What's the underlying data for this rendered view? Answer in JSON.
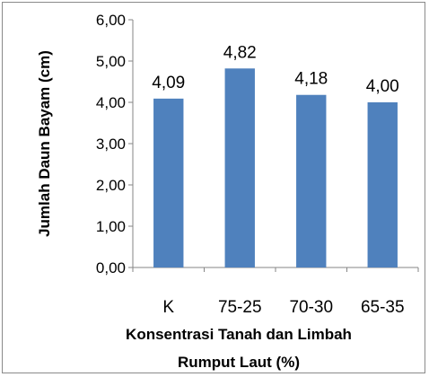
{
  "chart_data": {
    "type": "bar",
    "categories": [
      "K",
      "75-25",
      "70-30",
      "65-35"
    ],
    "values": [
      4.09,
      4.82,
      4.18,
      4.0
    ],
    "data_labels": [
      "4,09",
      "4,82",
      "4,18",
      "4,00"
    ],
    "ylabel": "Jumlah  Daun Bayam (cm)",
    "xlabel_lines": [
      "Konsentrasi Tanah dan Limbah",
      "Rumput Laut (%)"
    ],
    "ylim": [
      0,
      6
    ],
    "yticks": [
      "0,00",
      "1,00",
      "2,00",
      "3,00",
      "4,00",
      "5,00",
      "6,00"
    ],
    "bar_color": "#4F81BD",
    "grid": false,
    "legend": "none"
  }
}
